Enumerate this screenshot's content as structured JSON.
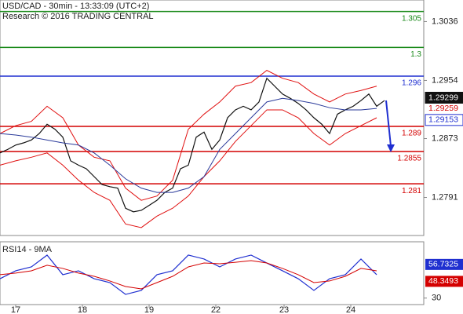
{
  "chart_data": {
    "type": "line",
    "title": "USD/CAD - 30min - 13:33:09 (UTC+2)",
    "subtitle": "Research © 2016 TRADING CENTRAL",
    "ylim": [
      1.2738,
      1.3066
    ],
    "yticks": [
      1.3036,
      1.2954,
      1.2873,
      1.2791
    ],
    "xlim": [
      0,
      54
    ],
    "xticks": [
      {
        "value": 2,
        "label": "17"
      },
      {
        "value": 10.5,
        "label": "18"
      },
      {
        "value": 19,
        "label": "19"
      },
      {
        "value": 27.5,
        "label": "22"
      },
      {
        "value": 36.2,
        "label": "23"
      },
      {
        "value": 44.7,
        "label": "24"
      }
    ],
    "levels": [
      {
        "value": 1.305,
        "color": "#1a8a1a"
      },
      {
        "value": 1.3,
        "color": "#1a8a1a"
      },
      {
        "value": 1.296,
        "color": "#1f2fd0"
      },
      {
        "value": 1.289,
        "color": "#d40000"
      },
      {
        "value": 1.2855,
        "color": "#d40000"
      },
      {
        "value": 1.281,
        "color": "#d40000"
      }
    ],
    "markers": [
      {
        "value": 1.29299,
        "color": "#111111"
      },
      {
        "value": 1.29259,
        "color": "#d40000"
      },
      {
        "value": 1.29153,
        "color": "#1f2fd0"
      }
    ],
    "series": [
      {
        "color": "#111111",
        "x": [
          0,
          1,
          2,
          3,
          4,
          5,
          6,
          7,
          8,
          9,
          10,
          11,
          12,
          13,
          14,
          15,
          16,
          17,
          18,
          19,
          20,
          21,
          22,
          23,
          24,
          25,
          26,
          27,
          28,
          29,
          30,
          31,
          32,
          33,
          34,
          35,
          36,
          37,
          38,
          39,
          40,
          41,
          42,
          43,
          44,
          45,
          46,
          47,
          48,
          49
        ],
        "values": [
          1.2853,
          1.2858,
          1.2864,
          1.2867,
          1.2871,
          1.288,
          1.2893,
          1.2886,
          1.2875,
          1.2842,
          1.2836,
          1.2831,
          1.282,
          1.2809,
          1.2806,
          1.2804,
          1.2776,
          1.2771,
          1.2773,
          1.278,
          1.2787,
          1.2798,
          1.2804,
          1.2831,
          1.2836,
          1.2875,
          1.2882,
          1.2858,
          1.2871,
          1.2902,
          1.2913,
          1.2918,
          1.2913,
          1.2924,
          1.2957,
          1.2946,
          1.2935,
          1.2929,
          1.2922,
          1.2913,
          1.2902,
          1.2893,
          1.288,
          1.2907,
          1.2913,
          1.2918,
          1.2926,
          1.2935,
          1.2918,
          1.2926
        ]
      },
      {
        "color": "#e01010",
        "x": [
          0,
          2,
          4,
          6,
          8,
          10,
          12,
          14,
          16,
          18,
          20,
          22,
          24,
          26,
          28,
          30,
          32,
          34,
          36,
          38,
          40,
          42,
          44,
          46,
          48
        ],
        "values": [
          1.288,
          1.2891,
          1.2897,
          1.2918,
          1.2902,
          1.2864,
          1.2847,
          1.2842,
          1.2804,
          1.2787,
          1.2793,
          1.2815,
          1.2886,
          1.2907,
          1.2924,
          1.2946,
          1.2951,
          1.2968,
          1.2957,
          1.2951,
          1.2935,
          1.2924,
          1.2935,
          1.294,
          1.2946
        ]
      },
      {
        "color": "#e01010",
        "x": [
          0,
          2,
          4,
          6,
          8,
          10,
          12,
          14,
          16,
          18,
          20,
          22,
          24,
          26,
          28,
          30,
          32,
          34,
          36,
          38,
          40,
          42,
          44,
          46,
          48
        ],
        "values": [
          1.2836,
          1.2842,
          1.2847,
          1.2853,
          1.2836,
          1.2815,
          1.2798,
          1.2787,
          1.2754,
          1.2749,
          1.2765,
          1.2776,
          1.2793,
          1.282,
          1.2842,
          1.2869,
          1.2891,
          1.2913,
          1.2913,
          1.2902,
          1.288,
          1.2864,
          1.288,
          1.2891,
          1.2902
        ]
      },
      {
        "color": "#2a3a9a",
        "x": [
          0,
          2,
          4,
          6,
          8,
          10,
          12,
          14,
          16,
          18,
          20,
          22,
          24,
          26,
          28,
          30,
          32,
          34,
          36,
          38,
          40,
          42,
          44,
          46,
          48
        ],
        "values": [
          1.288,
          1.2878,
          1.2875,
          1.2871,
          1.2867,
          1.2864,
          1.2853,
          1.2836,
          1.2817,
          1.2804,
          1.2798,
          1.2798,
          1.2804,
          1.282,
          1.2858,
          1.288,
          1.2902,
          1.2924,
          1.2929,
          1.2926,
          1.2922,
          1.2916,
          1.2913,
          1.2913,
          1.2915
        ]
      }
    ],
    "rsi": {
      "title": "RSI14 - 9MA",
      "ylim": [
        24,
        82
      ],
      "yticks": [
        30
      ],
      "markers": [
        {
          "value": 56.7325,
          "color": "#1f2fd0"
        },
        {
          "value": 48.3493,
          "color": "#d40000"
        }
      ],
      "series": [
        {
          "color": "#1f2fd0",
          "x": [
            0,
            2,
            4,
            6,
            8,
            10,
            12,
            14,
            16,
            18,
            20,
            22,
            24,
            26,
            28,
            30,
            32,
            34,
            36,
            38,
            40,
            42,
            44,
            46,
            48
          ],
          "values": [
            47.9,
            55.2,
            58.8,
            69.7,
            51.6,
            55.2,
            47.9,
            44.3,
            33.4,
            37.1,
            51.6,
            55.2,
            69.7,
            66.1,
            58.8,
            66.1,
            69.7,
            62.4,
            55.2,
            47.9,
            37.1,
            47.9,
            51.6,
            66.1,
            51.6
          ]
        },
        {
          "color": "#d40000",
          "x": [
            0,
            2,
            4,
            6,
            8,
            10,
            12,
            14,
            16,
            18,
            20,
            22,
            24,
            26,
            28,
            30,
            32,
            34,
            36,
            38,
            40,
            42,
            44,
            46,
            48
          ],
          "values": [
            51.6,
            53.1,
            55.2,
            60.3,
            57.4,
            53.1,
            50.1,
            45.8,
            40.7,
            38.5,
            44.3,
            50.1,
            58.8,
            62.4,
            61.7,
            63.1,
            64.6,
            62.4,
            57.4,
            51.6,
            44.3,
            45.8,
            50.1,
            57.4,
            55.2
          ]
        }
      ]
    }
  }
}
